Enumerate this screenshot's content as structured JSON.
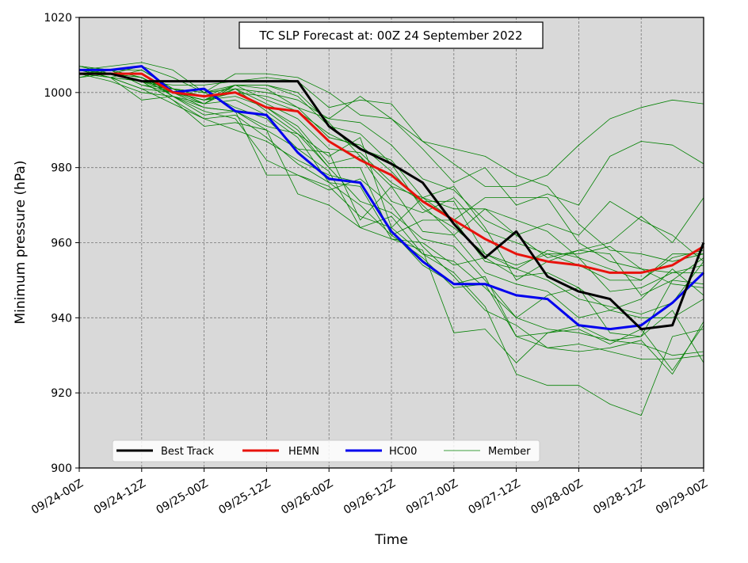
{
  "chart_data": {
    "type": "line",
    "title": "TC SLP Forecast at: 00Z 24 September 2022",
    "xlabel": "Time",
    "ylabel": "Minimum pressure (hPa)",
    "ylim": [
      900,
      1020
    ],
    "yticks": [
      900,
      920,
      940,
      960,
      980,
      1000,
      1020
    ],
    "x": [
      "09/24-00Z",
      "09/24-06Z",
      "09/24-12Z",
      "09/24-18Z",
      "09/25-00Z",
      "09/25-06Z",
      "09/25-12Z",
      "09/25-18Z",
      "09/26-00Z",
      "09/26-06Z",
      "09/26-12Z",
      "09/26-18Z",
      "09/27-00Z",
      "09/27-06Z",
      "09/27-12Z",
      "09/27-18Z",
      "09/28-00Z",
      "09/28-06Z",
      "09/28-12Z",
      "09/28-18Z",
      "09/29-00Z"
    ],
    "xtick_labels": [
      "09/24-00Z",
      "09/24-12Z",
      "09/25-00Z",
      "09/25-12Z",
      "09/26-00Z",
      "09/26-12Z",
      "09/27-00Z",
      "09/27-12Z",
      "09/28-00Z",
      "09/28-12Z",
      "09/29-00Z"
    ],
    "grid": true,
    "legend_placement": "lower-left",
    "colors": {
      "best_track": "#000000",
      "hemn": "#e8120c",
      "hc00": "#0000ee",
      "member": "#008000",
      "plot_background": "#d9d9d9"
    },
    "series": [
      {
        "name": "Best Track",
        "values": [
          1005,
          1005,
          1003,
          1003,
          1003,
          1003,
          1003,
          1003,
          991,
          985,
          981,
          976,
          965,
          956,
          963,
          951,
          947,
          945,
          937,
          938,
          960
        ]
      },
      {
        "name": "HEMN",
        "values": [
          1005,
          1005,
          1005,
          1000,
          999,
          1000,
          996,
          995,
          987,
          982,
          978,
          971,
          966,
          961,
          957,
          955,
          954,
          952,
          952,
          954,
          959
        ]
      },
      {
        "name": "HC00",
        "values": [
          1006,
          1006,
          1007,
          1000,
          1001,
          995,
          994,
          984,
          977,
          976,
          963,
          955,
          949,
          949,
          946,
          945,
          938,
          937,
          938,
          944,
          952
        ]
      },
      {
        "name": "Member",
        "members": [
          [
            1006,
            1007,
            1008,
            1006,
            1000,
            1005,
            1005,
            1004,
            1000,
            994,
            993,
            987,
            985,
            983,
            978,
            975,
            965,
            958,
            957,
            955,
            957
          ],
          [
            1005,
            1004,
            1003,
            1002,
            1002,
            1003,
            1004,
            1003,
            996,
            998,
            997,
            987,
            981,
            975,
            975,
            978,
            986,
            993,
            996,
            998,
            997
          ],
          [
            1004,
            1005,
            1007,
            1004,
            1000,
            1001,
            1000,
            998,
            993,
            999,
            993,
            985,
            976,
            980,
            970,
            973,
            970,
            983,
            987,
            986,
            981
          ],
          [
            1007,
            1006,
            1004,
            1000,
            998,
            1002,
            1001,
            996,
            993,
            992,
            986,
            977,
            974,
            966,
            962,
            965,
            962,
            971,
            966,
            962,
            955
          ],
          [
            1006,
            1005,
            1003,
            1001,
            1000,
            1002,
            1002,
            1000,
            992,
            983,
            975,
            972,
            969,
            969,
            962,
            956,
            958,
            960,
            967,
            960,
            972
          ],
          [
            1006,
            1005,
            1003,
            1000,
            997,
            1002,
            1002,
            999,
            991,
            989,
            981,
            969,
            964,
            957,
            954,
            957,
            957,
            959,
            953,
            949,
            948
          ],
          [
            1006,
            1004,
            1006,
            1001,
            999,
            1002,
            998,
            995,
            989,
            985,
            982,
            972,
            966,
            972,
            972,
            972,
            960,
            955,
            953,
            952,
            952
          ],
          [
            1005,
            1006,
            1004,
            1000,
            998,
            1000,
            999,
            996,
            988,
            986,
            979,
            970,
            962,
            969,
            966,
            963,
            956,
            953,
            950,
            956,
            958
          ],
          [
            1007,
            1006,
            1002,
            1001,
            999,
            1000,
            996,
            991,
            981,
            983,
            971,
            968,
            972,
            963,
            960,
            957,
            954,
            950,
            950,
            957,
            957
          ],
          [
            1006,
            1005,
            1004,
            1000,
            998,
            1001,
            997,
            993,
            985,
            984,
            976,
            971,
            971,
            957,
            953,
            958,
            956,
            947,
            948,
            952,
            954
          ],
          [
            1005,
            1005,
            1005,
            999,
            997,
            1001,
            995,
            989,
            983,
            988,
            964,
            972,
            975,
            964,
            950,
            955,
            958,
            957,
            946,
            950,
            949
          ],
          [
            1004,
            1006,
            1002,
            1000,
            998,
            999,
            996,
            990,
            980,
            980,
            962,
            966,
            966,
            955,
            953,
            950,
            945,
            943,
            941,
            944,
            955
          ],
          [
            1006,
            1004,
            1003,
            1001,
            997,
            998,
            994,
            988,
            976,
            975,
            961,
            960,
            954,
            956,
            951,
            952,
            948,
            942,
            945,
            953,
            946
          ],
          [
            1005,
            1006,
            1006,
            1001,
            1000,
            996,
            993,
            985,
            984,
            966,
            975,
            963,
            962,
            952,
            949,
            947,
            940,
            942,
            940,
            940,
            945
          ],
          [
            1005,
            1003,
            1000,
            999,
            996,
            995,
            991,
            989,
            980,
            971,
            968,
            961,
            959,
            950,
            940,
            946,
            948,
            936,
            935,
            950,
            956
          ],
          [
            1006,
            1004,
            1001,
            1000,
            996,
            995,
            990,
            985,
            979,
            964,
            967,
            957,
            955,
            948,
            940,
            937,
            936,
            934,
            933,
            930,
            931
          ],
          [
            1005,
            1005,
            1004,
            999,
            994,
            995,
            978,
            978,
            974,
            977,
            970,
            959,
            951,
            942,
            938,
            932,
            933,
            931,
            929,
            929,
            930
          ],
          [
            1006,
            1005,
            1003,
            998,
            993,
            990,
            987,
            982,
            978,
            976,
            963,
            954,
            949,
            951,
            935,
            932,
            931,
            932,
            934,
            925,
            939
          ],
          [
            1006,
            1004,
            1001,
            997,
            993,
            994,
            988,
            981,
            976,
            970,
            962,
            956,
            948,
            949,
            935,
            936,
            937,
            933,
            937,
            926,
            938
          ],
          [
            1007,
            1005,
            1003,
            998,
            991,
            992,
            990,
            973,
            970,
            964,
            961,
            958,
            936,
            937,
            928,
            936,
            938,
            934,
            935,
            942,
            928
          ],
          [
            1006,
            1004,
            998,
            999,
            995,
            993,
            982,
            978,
            975,
            967,
            964,
            957,
            952,
            943,
            925,
            922,
            922,
            917,
            914,
            935,
            937
          ]
        ]
      }
    ]
  }
}
